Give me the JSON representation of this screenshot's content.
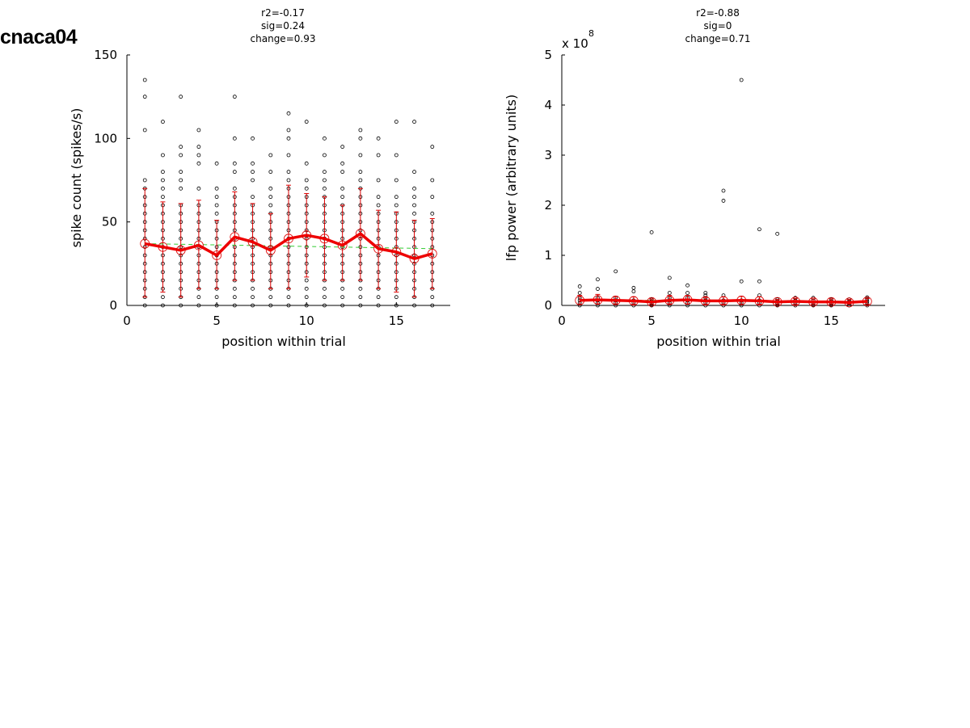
{
  "figure_title": "cnaca04",
  "chart_data": [
    {
      "type": "scatter",
      "annotations": [
        "r2=-0.17",
        "sig=0.24",
        "change=0.93"
      ],
      "xlabel": "position within trial",
      "ylabel": "spike count (spikes/s)",
      "exponent_label": "",
      "xlim": [
        0,
        18
      ],
      "ylim": [
        0,
        150
      ],
      "xticks": [
        0,
        5,
        10,
        15
      ],
      "yticks": [
        0,
        50,
        100,
        150
      ],
      "x": [
        1,
        2,
        3,
        4,
        5,
        6,
        7,
        8,
        9,
        10,
        11,
        12,
        13,
        14,
        15,
        16,
        17
      ],
      "mean": [
        37,
        35,
        33,
        36,
        30,
        41,
        38,
        33,
        40,
        42,
        40,
        36,
        43,
        34,
        32,
        28,
        31
      ],
      "error_low": [
        5,
        8,
        5,
        10,
        10,
        15,
        15,
        10,
        10,
        17,
        15,
        15,
        15,
        10,
        8,
        5,
        10
      ],
      "error_high": [
        70,
        62,
        61,
        63,
        51,
        68,
        61,
        55,
        72,
        67,
        65,
        60,
        70,
        57,
        56,
        51,
        52
      ],
      "fit": {
        "start": 37,
        "end": 34
      },
      "points": [
        [
          0,
          5,
          10,
          15,
          20,
          25,
          30,
          35,
          40,
          45,
          50,
          55,
          60,
          65,
          70,
          75,
          105,
          125,
          135
        ],
        [
          0,
          5,
          10,
          15,
          20,
          25,
          30,
          35,
          40,
          45,
          50,
          55,
          60,
          65,
          70,
          75,
          80,
          90,
          110
        ],
        [
          0,
          5,
          10,
          15,
          20,
          25,
          30,
          35,
          40,
          45,
          50,
          55,
          60,
          70,
          75,
          80,
          90,
          95,
          125
        ],
        [
          0,
          5,
          10,
          15,
          20,
          25,
          30,
          35,
          40,
          45,
          50,
          55,
          60,
          70,
          85,
          90,
          95,
          105
        ],
        [
          0,
          5,
          10,
          15,
          20,
          25,
          30,
          35,
          40,
          45,
          50,
          55,
          60,
          65,
          70,
          85
        ],
        [
          0,
          5,
          10,
          15,
          20,
          25,
          30,
          35,
          40,
          45,
          50,
          55,
          60,
          65,
          70,
          80,
          85,
          100,
          125
        ],
        [
          0,
          5,
          10,
          15,
          20,
          25,
          30,
          35,
          40,
          45,
          50,
          55,
          60,
          65,
          75,
          80,
          85,
          100
        ],
        [
          0,
          5,
          10,
          15,
          20,
          25,
          30,
          35,
          40,
          45,
          50,
          55,
          60,
          65,
          70,
          80,
          90
        ],
        [
          0,
          5,
          10,
          15,
          20,
          25,
          30,
          35,
          40,
          45,
          50,
          55,
          60,
          65,
          70,
          75,
          80,
          90,
          100,
          105,
          115
        ],
        [
          0,
          5,
          10,
          15,
          20,
          25,
          30,
          35,
          40,
          45,
          50,
          55,
          60,
          65,
          70,
          75,
          85,
          110
        ],
        [
          0,
          5,
          10,
          15,
          20,
          25,
          30,
          35,
          40,
          45,
          50,
          55,
          60,
          65,
          70,
          75,
          80,
          90,
          100
        ],
        [
          0,
          5,
          10,
          15,
          20,
          25,
          30,
          35,
          40,
          45,
          50,
          55,
          60,
          65,
          70,
          80,
          85,
          95
        ],
        [
          0,
          5,
          10,
          15,
          20,
          25,
          30,
          35,
          40,
          45,
          50,
          55,
          60,
          65,
          70,
          75,
          80,
          90,
          100,
          105
        ],
        [
          0,
          5,
          10,
          15,
          20,
          25,
          30,
          35,
          40,
          45,
          50,
          55,
          60,
          65,
          75,
          90,
          100
        ],
        [
          0,
          5,
          10,
          15,
          20,
          25,
          30,
          35,
          40,
          45,
          50,
          55,
          60,
          65,
          75,
          90,
          110
        ],
        [
          0,
          5,
          10,
          15,
          20,
          25,
          30,
          35,
          40,
          45,
          50,
          55,
          60,
          65,
          70,
          80,
          110
        ],
        [
          0,
          5,
          10,
          15,
          20,
          25,
          30,
          35,
          40,
          45,
          50,
          55,
          65,
          75,
          95
        ]
      ]
    },
    {
      "type": "scatter",
      "annotations": [
        "r2=-0.88",
        "sig=0",
        "change=0.71"
      ],
      "xlabel": "position within trial",
      "ylabel": "lfp power (arbitrary units)",
      "exponent_label": "x 10",
      "exponent_sup": "8",
      "xlim": [
        0,
        18
      ],
      "ylim": [
        0,
        5
      ],
      "xticks": [
        0,
        5,
        10,
        15
      ],
      "yticks": [
        0,
        1,
        2,
        3,
        4,
        5
      ],
      "x": [
        1,
        2,
        3,
        4,
        5,
        6,
        7,
        8,
        9,
        10,
        11,
        12,
        13,
        14,
        15,
        16,
        17
      ],
      "mean": [
        0.1,
        0.11,
        0.1,
        0.09,
        0.07,
        0.1,
        0.11,
        0.09,
        0.09,
        0.1,
        0.09,
        0.07,
        0.08,
        0.07,
        0.07,
        0.06,
        0.08
      ],
      "error_low": [
        0.02,
        0.03,
        0.03,
        0.02,
        0.02,
        0.03,
        0.03,
        0.02,
        0.02,
        0.02,
        0.02,
        0.02,
        0.02,
        0.02,
        0.02,
        0.02,
        0.02
      ],
      "error_high": [
        0.2,
        0.22,
        0.18,
        0.17,
        0.13,
        0.2,
        0.2,
        0.16,
        0.17,
        0.18,
        0.17,
        0.12,
        0.14,
        0.13,
        0.13,
        0.12,
        0.14
      ],
      "fit": {
        "start": 0.11,
        "end": 0.07
      },
      "points": [
        [
          0.0,
          0.05,
          0.1,
          0.15,
          0.25,
          0.38
        ],
        [
          0.0,
          0.05,
          0.1,
          0.15,
          0.33,
          0.52
        ],
        [
          0.0,
          0.05,
          0.1,
          0.15,
          0.68
        ],
        [
          0.0,
          0.05,
          0.1,
          0.28,
          0.35
        ],
        [
          0.0,
          0.04,
          0.08,
          0.12,
          1.46
        ],
        [
          0.0,
          0.05,
          0.1,
          0.15,
          0.25,
          0.55
        ],
        [
          0.0,
          0.05,
          0.1,
          0.15,
          0.25,
          0.4
        ],
        [
          0.0,
          0.05,
          0.1,
          0.15,
          0.2,
          0.25
        ],
        [
          0.0,
          0.05,
          0.1,
          0.2,
          2.09,
          2.29
        ],
        [
          0.0,
          0.05,
          0.1,
          0.48,
          4.5
        ],
        [
          0.0,
          0.05,
          0.1,
          0.2,
          0.48,
          1.52
        ],
        [
          0.0,
          0.04,
          0.08,
          0.12,
          1.43
        ],
        [
          0.0,
          0.05,
          0.1,
          0.15
        ],
        [
          0.0,
          0.05,
          0.1,
          0.15
        ],
        [
          0.0,
          0.04,
          0.08,
          0.12
        ],
        [
          0.0,
          0.04,
          0.08,
          0.12
        ],
        [
          0.0,
          0.04,
          0.08,
          0.12,
          0.16
        ]
      ]
    }
  ]
}
